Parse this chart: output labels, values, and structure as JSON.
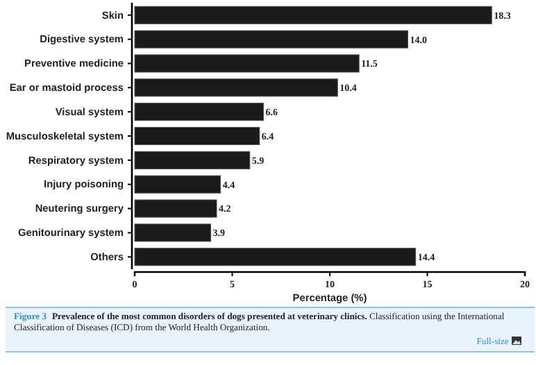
{
  "chart_data": {
    "type": "bar",
    "orientation": "horizontal",
    "categories": [
      "Skin",
      "Digestive system",
      "Preventive medicine",
      "Ear or mastoid process",
      "Visual system",
      "Musculoskeletal system",
      "Respiratory system",
      "Injury poisoning",
      "Neutering surgery",
      "Genitourinary system",
      "Others"
    ],
    "values": [
      18.3,
      14.0,
      11.5,
      10.4,
      6.6,
      6.4,
      5.9,
      4.4,
      4.2,
      3.9,
      14.4
    ],
    "value_labels": [
      "18.3",
      "14.0",
      "11.5",
      "10.4",
      "6.6",
      "6.4",
      "5.9",
      "4.4",
      "4.2",
      "3.9",
      "14.4"
    ],
    "color": "#1a1a1a",
    "xlim": [
      0,
      20
    ],
    "xticks": [
      0,
      5,
      10,
      15,
      20
    ],
    "xlabel": "Percentage (%)",
    "grid": false,
    "annotations": [
      "Figure 3",
      "Prevalence of the most common disorders of dogs presented at veterinary clinics.",
      "Classification using the International Classification of Diseases (ICD) from the World Health Organization.",
      "Full-size"
    ]
  }
}
